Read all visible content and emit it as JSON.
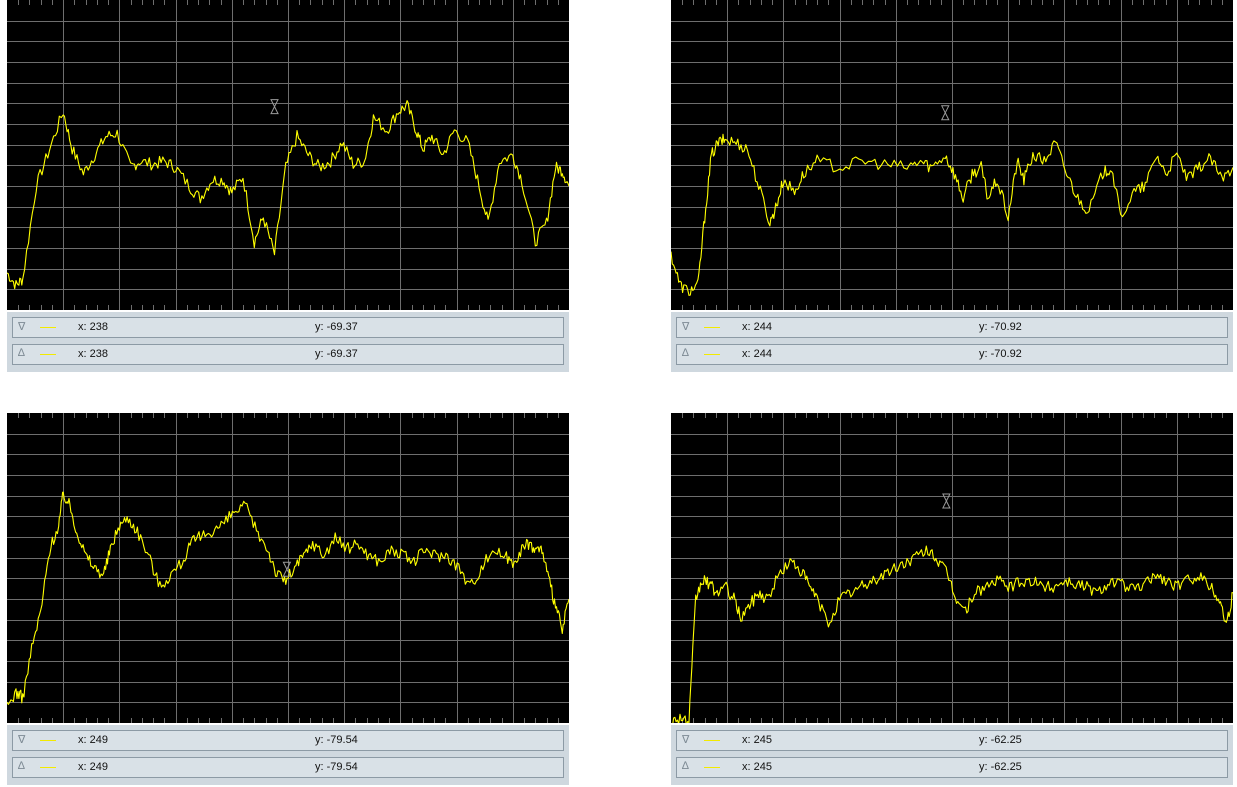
{
  "colors": {
    "trace": "#ffff00",
    "grid": "#6e6e6e",
    "background": "#000000",
    "marker": "#9a9a9a"
  },
  "panels": [
    {
      "readouts": [
        {
          "marker_icon": "∇",
          "x_text": "x: 238",
          "y_text": "y: -69.37"
        },
        {
          "marker_icon": "∆",
          "x_text": "x: 238",
          "y_text": "y: -69.37"
        }
      ]
    },
    {
      "readouts": [
        {
          "marker_icon": "∇",
          "x_text": "x: 244",
          "y_text": "y: -70.92"
        },
        {
          "marker_icon": "∆",
          "x_text": "x: 244",
          "y_text": "y: -70.92"
        }
      ]
    },
    {
      "readouts": [
        {
          "marker_icon": "∇",
          "x_text": "x: 249",
          "y_text": "y: -79.54"
        },
        {
          "marker_icon": "∆",
          "x_text": "x: 249",
          "y_text": "y: -79.54"
        }
      ]
    },
    {
      "readouts": [
        {
          "marker_icon": "∇",
          "x_text": "x: 245",
          "y_text": "y: -62.25"
        },
        {
          "marker_icon": "∆",
          "x_text": "x: 245",
          "y_text": "y: -62.25"
        }
      ]
    }
  ],
  "chart_data": [
    {
      "type": "line",
      "grid": true,
      "x_domain": [
        0,
        500
      ],
      "y_domain": [
        0,
        100
      ],
      "markers": [
        {
          "x": 238,
          "y": 64
        }
      ],
      "series": [
        {
          "x": [
            0,
            8,
            14,
            26,
            38,
            50,
            58,
            68,
            78,
            88,
            98,
            110,
            118,
            130,
            140,
            150,
            162,
            172,
            182,
            192,
            200,
            210,
            220,
            228,
            238,
            248,
            258,
            268,
            278,
            288,
            298,
            308,
            318,
            326,
            338,
            348,
            356,
            364,
            370,
            378,
            388,
            398,
            410,
            420,
            428,
            438,
            450,
            458,
            470,
            480,
            488,
            494,
            500
          ],
          "y": [
            12,
            8,
            10,
            40,
            52,
            64,
            52,
            44,
            50,
            56,
            57,
            46,
            48,
            47,
            48,
            46,
            40,
            36,
            42,
            42,
            38,
            43,
            22,
            30,
            18,
            46,
            56,
            50,
            46,
            48,
            54,
            47,
            48,
            62,
            58,
            64,
            66,
            58,
            52,
            56,
            50,
            58,
            54,
            40,
            28,
            48,
            50,
            42,
            22,
            28,
            46,
            45,
            40
          ]
        }
      ]
    },
    {
      "type": "line",
      "grid": true,
      "x_domain": [
        0,
        500
      ],
      "y_domain": [
        0,
        100
      ],
      "markers": [
        {
          "x": 244,
          "y": 62
        }
      ],
      "series": [
        {
          "x": [
            0,
            8,
            16,
            24,
            30,
            36,
            42,
            48,
            58,
            68,
            78,
            88,
            94,
            100,
            110,
            118,
            130,
            150,
            170,
            190,
            210,
            222,
            232,
            244,
            252,
            260,
            268,
            276,
            282,
            290,
            300,
            308,
            314,
            322,
            332,
            342,
            352,
            362,
            372,
            384,
            392,
            400,
            412,
            422,
            432,
            440,
            450,
            460,
            470,
            480,
            490,
            500
          ],
          "y": [
            18,
            8,
            6,
            8,
            30,
            50,
            54,
            55,
            54,
            52,
            40,
            28,
            34,
            42,
            38,
            44,
            48,
            46,
            48,
            47,
            46,
            48,
            46,
            50,
            44,
            36,
            44,
            46,
            36,
            42,
            30,
            48,
            42,
            50,
            48,
            54,
            44,
            36,
            32,
            44,
            46,
            30,
            38,
            40,
            50,
            44,
            50,
            42,
            46,
            49,
            42,
            46
          ]
        }
      ]
    },
    {
      "type": "line",
      "grid": true,
      "x_domain": [
        0,
        500
      ],
      "y_domain": [
        0,
        100
      ],
      "markers": [
        {
          "x": 249,
          "y": 48
        }
      ],
      "series": [
        {
          "x": [
            0,
            8,
            14,
            22,
            30,
            38,
            46,
            50,
            56,
            62,
            70,
            78,
            86,
            92,
            100,
            108,
            116,
            126,
            136,
            146,
            156,
            164,
            172,
            182,
            192,
            202,
            212,
            222,
            232,
            240,
            248,
            256,
            264,
            272,
            282,
            292,
            302,
            312,
            322,
            332,
            342,
            352,
            362,
            372,
            382,
            392,
            402,
            412,
            422,
            432,
            442,
            450,
            458,
            464,
            470,
            476,
            482,
            488,
            494,
            500
          ],
          "y": [
            5,
            10,
            8,
            24,
            36,
            56,
            64,
            74,
            70,
            62,
            54,
            50,
            48,
            56,
            64,
            66,
            62,
            54,
            44,
            48,
            52,
            58,
            60,
            62,
            64,
            68,
            70,
            62,
            56,
            48,
            46,
            50,
            54,
            58,
            54,
            60,
            56,
            58,
            54,
            52,
            56,
            54,
            52,
            56,
            54,
            54,
            50,
            44,
            50,
            56,
            54,
            52,
            56,
            58,
            56,
            56,
            46,
            38,
            30,
            40
          ]
        }
      ]
    },
    {
      "type": "line",
      "grid": true,
      "x_domain": [
        0,
        500
      ],
      "y_domain": [
        0,
        100
      ],
      "markers": [
        {
          "x": 245,
          "y": 70
        }
      ],
      "series": [
        {
          "x": [
            0,
            8,
            16,
            22,
            28,
            34,
            40,
            48,
            56,
            62,
            70,
            78,
            86,
            96,
            106,
            114,
            122,
            130,
            140,
            150,
            160,
            170,
            180,
            190,
            200,
            210,
            220,
            230,
            238,
            246,
            254,
            262,
            270,
            280,
            290,
            300,
            310,
            320,
            330,
            340,
            350,
            360,
            370,
            380,
            390,
            400,
            410,
            420,
            430,
            440,
            450,
            460,
            470,
            480,
            488,
            494,
            500
          ],
          "y": [
            0,
            2,
            0,
            40,
            46,
            45,
            42,
            44,
            40,
            34,
            38,
            42,
            40,
            48,
            52,
            50,
            45,
            40,
            32,
            40,
            42,
            44,
            46,
            48,
            50,
            52,
            54,
            56,
            52,
            48,
            40,
            36,
            42,
            44,
            46,
            44,
            45,
            46,
            44,
            44,
            46,
            45,
            44,
            42,
            46,
            45,
            43,
            44,
            48,
            46,
            44,
            46,
            48,
            44,
            40,
            32,
            42
          ]
        }
      ]
    }
  ]
}
